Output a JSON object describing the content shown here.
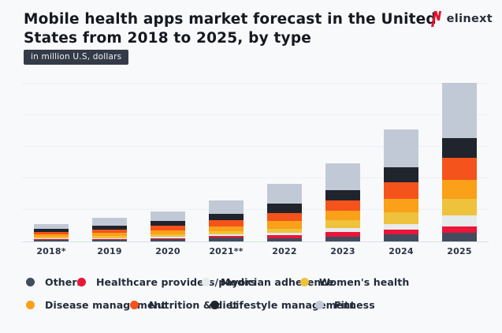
{
  "header": {
    "title": "Mobile health apps market forecast in the United\nStates from 2018 to 2025, by type",
    "subtitle_badge": "in million U.S, dollars",
    "logo_text": "elinext"
  },
  "colors": {
    "background": "#f8f9fb",
    "title_text": "#15181f",
    "badge_background": "#343b48",
    "axis_line": "#d9dee6",
    "gridline": "#edf0f4",
    "logo_red": "#e4122f"
  },
  "chart_data": {
    "type": "bar",
    "stacked": true,
    "title": "Mobile health apps market forecast in the United States from 2018 to 2025, by type",
    "ylabel": "in million U.S, dollars",
    "xlabel": "",
    "categories": [
      "2018*",
      "2019",
      "2020",
      "2021**",
      "2022",
      "2023",
      "2024",
      "2025"
    ],
    "series": [
      {
        "name": "Others",
        "color": "#424c5e",
        "values": [
          2,
          2,
          3,
          5,
          4,
          6,
          9,
          11
        ]
      },
      {
        "name": "Healthcare providers/payors",
        "color": "#ea1539",
        "values": [
          1,
          1,
          1,
          2,
          4,
          6,
          6,
          8
        ]
      },
      {
        "name": "Medician adherence",
        "color": "#e7ebec",
        "values": [
          1,
          1,
          2,
          2,
          3,
          5,
          7,
          14
        ]
      },
      {
        "name": "Women's health",
        "color": "#eec23c",
        "values": [
          2,
          3,
          3,
          4,
          5,
          10,
          15,
          21
        ]
      },
      {
        "name": "Disease management",
        "color": "#faa019",
        "values": [
          3,
          4,
          5,
          6,
          10,
          12,
          17,
          24
        ]
      },
      {
        "name": "Nutrition & diet",
        "color": "#f4531b",
        "values": [
          3,
          4,
          6,
          8,
          10,
          13,
          21,
          28
        ]
      },
      {
        "name": "Lifestyle management",
        "color": "#20242c",
        "values": [
          4,
          5,
          6,
          8,
          12,
          13,
          19,
          25
        ]
      },
      {
        "name": "Fitness",
        "color": "#c2c9d6",
        "values": [
          6,
          10,
          12,
          17,
          25,
          34,
          48,
          70
        ]
      }
    ],
    "totals": [
      22,
      30,
      38,
      52,
      73,
      99,
      142,
      201
    ],
    "y_axis": {
      "tick_labels_visible": false,
      "gridline_spacing_units": 40,
      "range_units": [
        0,
        204
      ],
      "note": "y-axis has no printed tick labels; values are relative units estimated from bar heights (one gridline = 40 units)"
    },
    "legend_position": "bottom",
    "grid": true
  }
}
